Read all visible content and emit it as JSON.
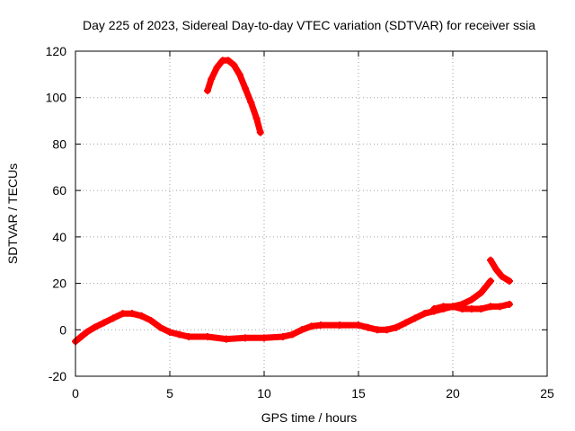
{
  "chart_data": {
    "type": "scatter",
    "title": "Day 225 of 2023, Sidereal Day-to-day VTEC variation (SDTVAR) for receiver ssia",
    "xlabel": "GPS time / hours",
    "ylabel": "SDTVAR / TECUs",
    "xlim": [
      0,
      25
    ],
    "ylim": [
      -20,
      120
    ],
    "xticks": [
      0,
      5,
      10,
      15,
      20,
      25
    ],
    "yticks": [
      -20,
      0,
      20,
      40,
      60,
      80,
      100,
      120
    ],
    "grid": true,
    "color": "#ff0000",
    "series": [
      {
        "name": "low",
        "points": [
          [
            0,
            -5
          ],
          [
            0.3,
            -3
          ],
          [
            0.6,
            -1
          ],
          [
            1,
            1
          ],
          [
            1.5,
            3
          ],
          [
            2,
            5
          ],
          [
            2.5,
            7
          ],
          [
            3,
            7
          ],
          [
            3.5,
            6
          ],
          [
            4,
            4
          ],
          [
            4.5,
            1
          ],
          [
            5,
            -1
          ],
          [
            5.5,
            -2
          ],
          [
            6,
            -3
          ],
          [
            7,
            -3
          ],
          [
            8,
            -4
          ],
          [
            9,
            -3.5
          ],
          [
            10,
            -3.5
          ],
          [
            11,
            -3
          ],
          [
            11.5,
            -2
          ],
          [
            12,
            0
          ],
          [
            12.5,
            1.5
          ],
          [
            13,
            2
          ],
          [
            14,
            2
          ],
          [
            15,
            2
          ],
          [
            15.5,
            1
          ],
          [
            16,
            0
          ],
          [
            16.5,
            0
          ],
          [
            17,
            1
          ],
          [
            17.5,
            3
          ],
          [
            18,
            5
          ],
          [
            18.5,
            7
          ],
          [
            19,
            8
          ],
          [
            19.5,
            9
          ],
          [
            20,
            10
          ],
          [
            20.5,
            9
          ],
          [
            21,
            9
          ],
          [
            21.5,
            9
          ],
          [
            22,
            10
          ],
          [
            22.5,
            10
          ],
          [
            23,
            11
          ]
        ]
      },
      {
        "name": "high",
        "points": [
          [
            7,
            103
          ],
          [
            7.2,
            108
          ],
          [
            7.5,
            113
          ],
          [
            7.8,
            116
          ],
          [
            8.1,
            116
          ],
          [
            8.4,
            114
          ],
          [
            8.7,
            110
          ],
          [
            9,
            104
          ],
          [
            9.3,
            98
          ],
          [
            9.6,
            91
          ],
          [
            9.8,
            85
          ]
        ]
      },
      {
        "name": "upper-right",
        "points": [
          [
            19,
            9
          ],
          [
            19.5,
            10
          ],
          [
            20,
            10
          ],
          [
            20.5,
            11
          ],
          [
            21,
            13
          ],
          [
            21.5,
            16
          ],
          [
            22,
            21
          ]
        ]
      },
      {
        "name": "spike",
        "points": [
          [
            22,
            30
          ],
          [
            22.3,
            26
          ],
          [
            22.6,
            23
          ],
          [
            23,
            21
          ]
        ]
      }
    ]
  }
}
